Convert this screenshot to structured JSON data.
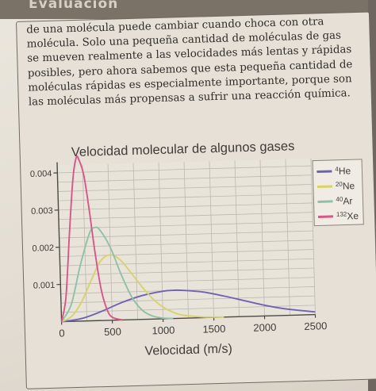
{
  "header": {
    "title": "Evaluación"
  },
  "paragraph": {
    "lines": [
      "de una molécula puede cambiar cuando choca con otra",
      "molécula. Solo una pequeña cantidad de moléculas de gas",
      "se mueven realmente a las velocidades más lentas y rápidas",
      "posibles, pero ahora sabemos que esta pequeña cantidad de",
      "moléculas rápidas es especialmente importante, porque son",
      "las moléculas más propensas a sufrir una reacción química."
    ]
  },
  "chart_data": {
    "type": "line",
    "title": "Velocidad molecular de algunos gases",
    "xlabel": "Velocidad (m/s)",
    "ylabel": "",
    "xlim": [
      0,
      2500
    ],
    "ylim": [
      0,
      0.0042
    ],
    "x_ticks": [
      "0",
      "500",
      "1000",
      "1500",
      "2000",
      "2500"
    ],
    "y_ticks": [
      "0.001",
      "0.002",
      "0.003",
      "0.004"
    ],
    "grid": true,
    "legend_position": "top-right",
    "series": [
      {
        "name": "4He",
        "sup": "4",
        "sym": "He",
        "color": "#6f62b5",
        "x": [
          0,
          200,
          400,
          600,
          800,
          1000,
          1100,
          1200,
          1400,
          1600,
          1800,
          2000,
          2200,
          2500
        ],
        "y": [
          0,
          7e-05,
          0.00025,
          0.00047,
          0.00064,
          0.00074,
          0.00076,
          0.00075,
          0.00069,
          0.00057,
          0.00043,
          0.00029,
          0.00018,
          7e-05
        ]
      },
      {
        "name": "20Ne",
        "sup": "20",
        "sym": "Ne",
        "color": "#d7d26a",
        "x": [
          0,
          100,
          200,
          300,
          400,
          500,
          600,
          700,
          800,
          900,
          1000,
          1100,
          1200,
          1400,
          1600
        ],
        "y": [
          0,
          0.00013,
          0.0005,
          0.00107,
          0.0016,
          0.00176,
          0.0016,
          0.00125,
          0.00088,
          0.00056,
          0.00032,
          0.00017,
          8e-05,
          2e-05,
          0
        ],
        "peak_label": "0.00176"
      },
      {
        "name": "40Ar",
        "sup": "40",
        "sym": "Ar",
        "color": "#8fc0a8",
        "x": [
          0,
          100,
          200,
          300,
          350,
          400,
          500,
          600,
          700,
          800,
          900,
          1000,
          1100
        ],
        "y": [
          0,
          0.00045,
          0.0015,
          0.00236,
          0.0025,
          0.00244,
          0.00196,
          0.00122,
          0.0006,
          0.00024,
          8e-05,
          2e-05,
          0
        ]
      },
      {
        "name": "132Xe",
        "sup": "132",
        "sym": "Xe",
        "color": "#d9558a",
        "x": [
          0,
          50,
          100,
          150,
          190,
          220,
          260,
          300,
          350,
          400,
          450,
          500,
          600
        ],
        "y": [
          0,
          0.00065,
          0.0023,
          0.0038,
          0.0044,
          0.0043,
          0.0039,
          0.00305,
          0.0018,
          0.00082,
          0.0003,
          8e-05,
          0
        ]
      }
    ]
  }
}
